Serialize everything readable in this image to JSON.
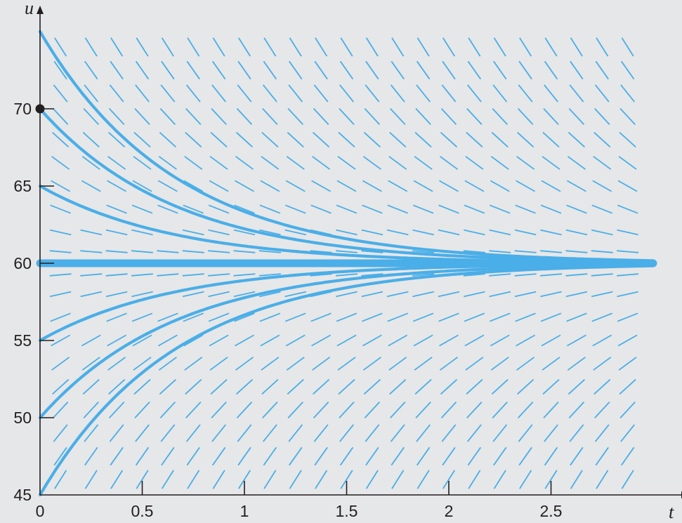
{
  "chart_data": {
    "type": "line",
    "description_kind": "direction field with solution curves",
    "xlabel": "t",
    "ylabel": "u",
    "xlim": [
      0,
      3
    ],
    "ylim": [
      45,
      75
    ],
    "x_ticks": [
      "0",
      "0.5",
      "1",
      "1.5",
      "2",
      "2.5"
    ],
    "x_tick_values": [
      0,
      0.5,
      1,
      1.5,
      2,
      2.5
    ],
    "y_ticks": [
      "45",
      "50",
      "55",
      "60",
      "65",
      "70"
    ],
    "y_tick_values": [
      45,
      50,
      55,
      60,
      65,
      70
    ],
    "equilibrium": 60,
    "rate_constant": 1.5,
    "slope_field": {
      "t_values": [
        0.1,
        0.25,
        0.375,
        0.5,
        0.625,
        0.75,
        0.875,
        1.0,
        1.125,
        1.25,
        1.375,
        1.5,
        1.625,
        1.75,
        1.875,
        2.0,
        2.125,
        2.25,
        2.375,
        2.5,
        2.625,
        2.75,
        2.875
      ],
      "u_values": [
        74,
        72.5,
        71,
        69.5,
        68,
        66.5,
        65,
        63.5,
        62,
        60.75,
        59.25,
        58,
        56.5,
        55,
        53.5,
        52,
        50.5,
        49,
        47.5,
        46
      ]
    },
    "series": [
      {
        "initial_value": 75,
        "t": [
          0,
          0.25,
          0.5,
          0.75,
          1.0,
          1.25,
          1.5,
          1.75,
          2.0,
          2.25,
          2.5,
          2.75,
          3.0
        ],
        "values": [
          75,
          68.2,
          64.72,
          62.43,
          61.34,
          60.71,
          60.4,
          60.23,
          60.12,
          60.06,
          60.03,
          60.02,
          60.01
        ]
      },
      {
        "initial_value": 70,
        "t": [
          0,
          0.25,
          0.5,
          0.75,
          1.0,
          1.25,
          1.5,
          1.75,
          2.0,
          2.25,
          2.5,
          2.75,
          3.0
        ],
        "values": [
          70,
          66.87,
          64.72,
          63.25,
          62.23,
          61.53,
          61.05,
          60.72,
          60.5,
          60.34,
          60.24,
          60.16,
          60.11
        ]
      },
      {
        "initial_value": 65,
        "t": [
          0,
          0.25,
          0.5,
          0.75,
          1.0,
          1.25,
          1.5,
          1.75,
          2.0,
          2.25,
          2.5,
          2.75,
          3.0
        ],
        "values": [
          65,
          63.44,
          62.36,
          61.62,
          61.12,
          60.77,
          60.53,
          60.36,
          60.25,
          60.17,
          60.12,
          60.08,
          60.06
        ]
      },
      {
        "initial_value": 60,
        "t": [
          0,
          3.0
        ],
        "values": [
          60,
          60
        ]
      },
      {
        "initial_value": 55,
        "t": [
          0,
          0.25,
          0.5,
          0.75,
          1.0,
          1.25,
          1.5,
          1.75,
          2.0,
          2.25,
          2.5,
          2.75,
          3.0
        ],
        "values": [
          55,
          56.56,
          57.64,
          58.38,
          58.88,
          59.23,
          59.47,
          59.64,
          59.75,
          59.83,
          59.88,
          59.92,
          59.94
        ]
      },
      {
        "initial_value": 50,
        "t": [
          0,
          0.25,
          0.5,
          0.75,
          1.0,
          1.25,
          1.5,
          1.75,
          2.0,
          2.25,
          2.5,
          2.75,
          3.0
        ],
        "values": [
          50,
          53.13,
          55.28,
          56.75,
          57.77,
          58.47,
          58.95,
          59.28,
          59.5,
          59.66,
          59.76,
          59.84,
          59.89
        ]
      },
      {
        "initial_value": 45,
        "t": [
          0,
          0.25,
          0.5,
          0.75,
          1.0,
          1.25,
          1.5,
          1.75,
          2.0,
          2.25,
          2.5,
          2.75,
          3.0
        ],
        "values": [
          45,
          49.69,
          52.92,
          55.13,
          56.65,
          57.7,
          58.42,
          58.92,
          59.25,
          59.49,
          59.65,
          59.76,
          59.83
        ]
      }
    ],
    "marked_point": {
      "t": 0,
      "u": 70
    },
    "grid": false,
    "colors": {
      "background": "#e6e7e8",
      "curve": "#4aaee8",
      "axis": "#231f20"
    }
  }
}
